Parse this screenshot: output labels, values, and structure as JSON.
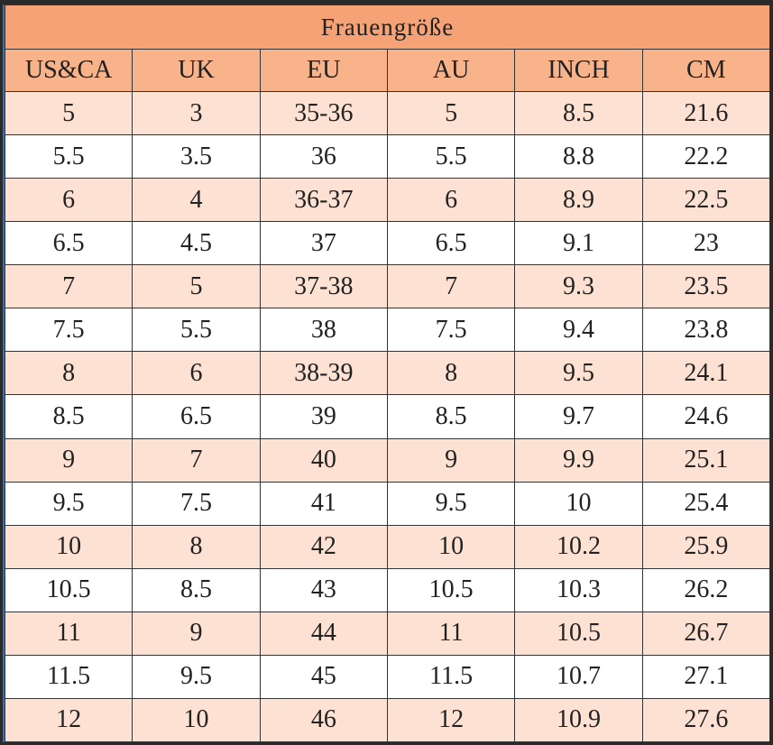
{
  "table": {
    "title": "Frauengröße",
    "header": [
      "US&CA",
      "UK",
      "EU",
      "AU",
      "INCH",
      "CM"
    ],
    "rows": [
      [
        "5",
        "3",
        "35-36",
        "5",
        "8.5",
        "21.6"
      ],
      [
        "5.5",
        "3.5",
        "36",
        "5.5",
        "8.8",
        "22.2"
      ],
      [
        "6",
        "4",
        "36-37",
        "6",
        "8.9",
        "22.5"
      ],
      [
        "6.5",
        "4.5",
        "37",
        "6.5",
        "9.1",
        "23"
      ],
      [
        "7",
        "5",
        "37-38",
        "7",
        "9.3",
        "23.5"
      ],
      [
        "7.5",
        "5.5",
        "38",
        "7.5",
        "9.4",
        "23.8"
      ],
      [
        "8",
        "6",
        "38-39",
        "8",
        "9.5",
        "24.1"
      ],
      [
        "8.5",
        "6.5",
        "39",
        "8.5",
        "9.7",
        "24.6"
      ],
      [
        "9",
        "7",
        "40",
        "9",
        "9.9",
        "25.1"
      ],
      [
        "9.5",
        "7.5",
        "41",
        "9.5",
        "10",
        "25.4"
      ],
      [
        "10",
        "8",
        "42",
        "10",
        "10.2",
        "25.9"
      ],
      [
        "10.5",
        "8.5",
        "43",
        "10.5",
        "10.3",
        "26.2"
      ],
      [
        "11",
        "9",
        "44",
        "11",
        "10.5",
        "26.7"
      ],
      [
        "11.5",
        "9.5",
        "45",
        "11.5",
        "10.7",
        "27.1"
      ],
      [
        "12",
        "10",
        "46",
        "12",
        "10.9",
        "27.6"
      ]
    ]
  }
}
